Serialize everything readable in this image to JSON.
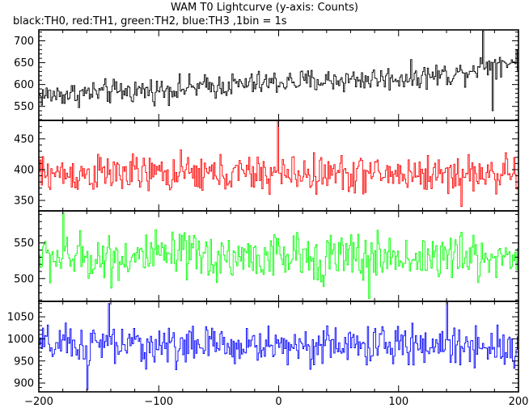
{
  "chart_data": {
    "type": "line",
    "title": "WAM T0 Lightcurve (y-axis: Counts)",
    "subtitle": "black:TH0, red:TH1, green:TH2, blue:TH3 ,1bin = 1s",
    "xlabel": "",
    "ylabel": "",
    "xlim": [
      -200,
      200
    ],
    "x_ticks": [
      -200,
      -100,
      0,
      100,
      200
    ],
    "x_tick_labels": [
      "−200",
      "−100",
      "0",
      "100",
      "200"
    ],
    "bin_width_s": 1,
    "grid": false,
    "panels": [
      {
        "name": "TH0",
        "color": "#000000",
        "ylim": [
          518,
          725
        ],
        "y_ticks": [
          550,
          600,
          650,
          700
        ],
        "trend": {
          "x": [
            -200,
            -100,
            0,
            100,
            150,
            170,
            200
          ],
          "y": [
            575,
            588,
            605,
            615,
            625,
            645,
            655
          ]
        },
        "noise_amplitude": 22,
        "spikes": [
          {
            "x": 170,
            "y": 722
          },
          {
            "x": 178,
            "y": 540
          }
        ]
      },
      {
        "name": "TH1",
        "color": "#ff0000",
        "ylim": [
          333,
          480
        ],
        "y_ticks": [
          350,
          400,
          450
        ],
        "trend": {
          "x": [
            -200,
            200
          ],
          "y": [
            393,
            393
          ]
        },
        "noise_amplitude": 24,
        "spikes": [
          {
            "x": -1,
            "y": 480
          },
          {
            "x": 152,
            "y": 340
          }
        ]
      },
      {
        "name": "TH2",
        "color": "#00ff00",
        "ylim": [
          468,
          595
        ],
        "y_ticks": [
          500,
          550
        ],
        "trend": {
          "x": [
            -200,
            200
          ],
          "y": [
            530,
            530
          ]
        },
        "noise_amplitude": 27,
        "spikes": [
          {
            "x": -180,
            "y": 592
          },
          {
            "x": 75,
            "y": 472
          }
        ]
      },
      {
        "name": "TH3",
        "color": "#0000ff",
        "ylim": [
          880,
          1085
        ],
        "y_ticks": [
          900,
          950,
          1000,
          1050
        ],
        "trend": {
          "x": [
            -200,
            200
          ],
          "y": [
            985,
            985
          ]
        },
        "noise_amplitude": 35,
        "spikes": [
          {
            "x": -142,
            "y": 1080
          },
          {
            "x": 140,
            "y": 1085
          },
          {
            "x": -160,
            "y": 885
          }
        ]
      }
    ]
  }
}
